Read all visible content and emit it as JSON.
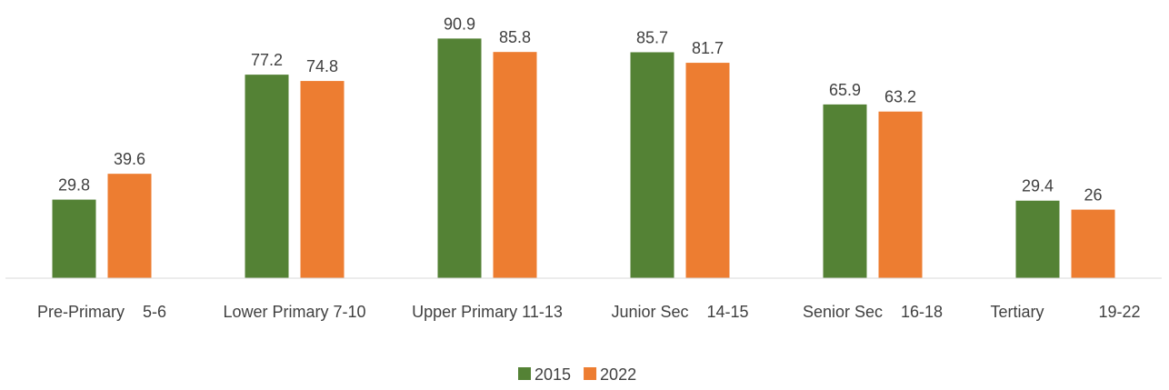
{
  "chart_data": {
    "type": "bar",
    "categories": [
      "Pre-Primary    5-6",
      "Lower Primary 7-10",
      "Upper Primary 11-13",
      "Junior Sec    14-15",
      "Senior Sec    16-18",
      "Tertiary            19-22"
    ],
    "series": [
      {
        "name": "2015",
        "color": "#548235",
        "values": [
          29.8,
          77.2,
          90.9,
          85.7,
          65.9,
          29.4
        ]
      },
      {
        "name": "2022",
        "color": "#ed7d31",
        "values": [
          39.6,
          74.8,
          85.8,
          81.7,
          63.2,
          26
        ]
      }
    ],
    "ylim": [
      0,
      100
    ],
    "legend": "bottom"
  }
}
